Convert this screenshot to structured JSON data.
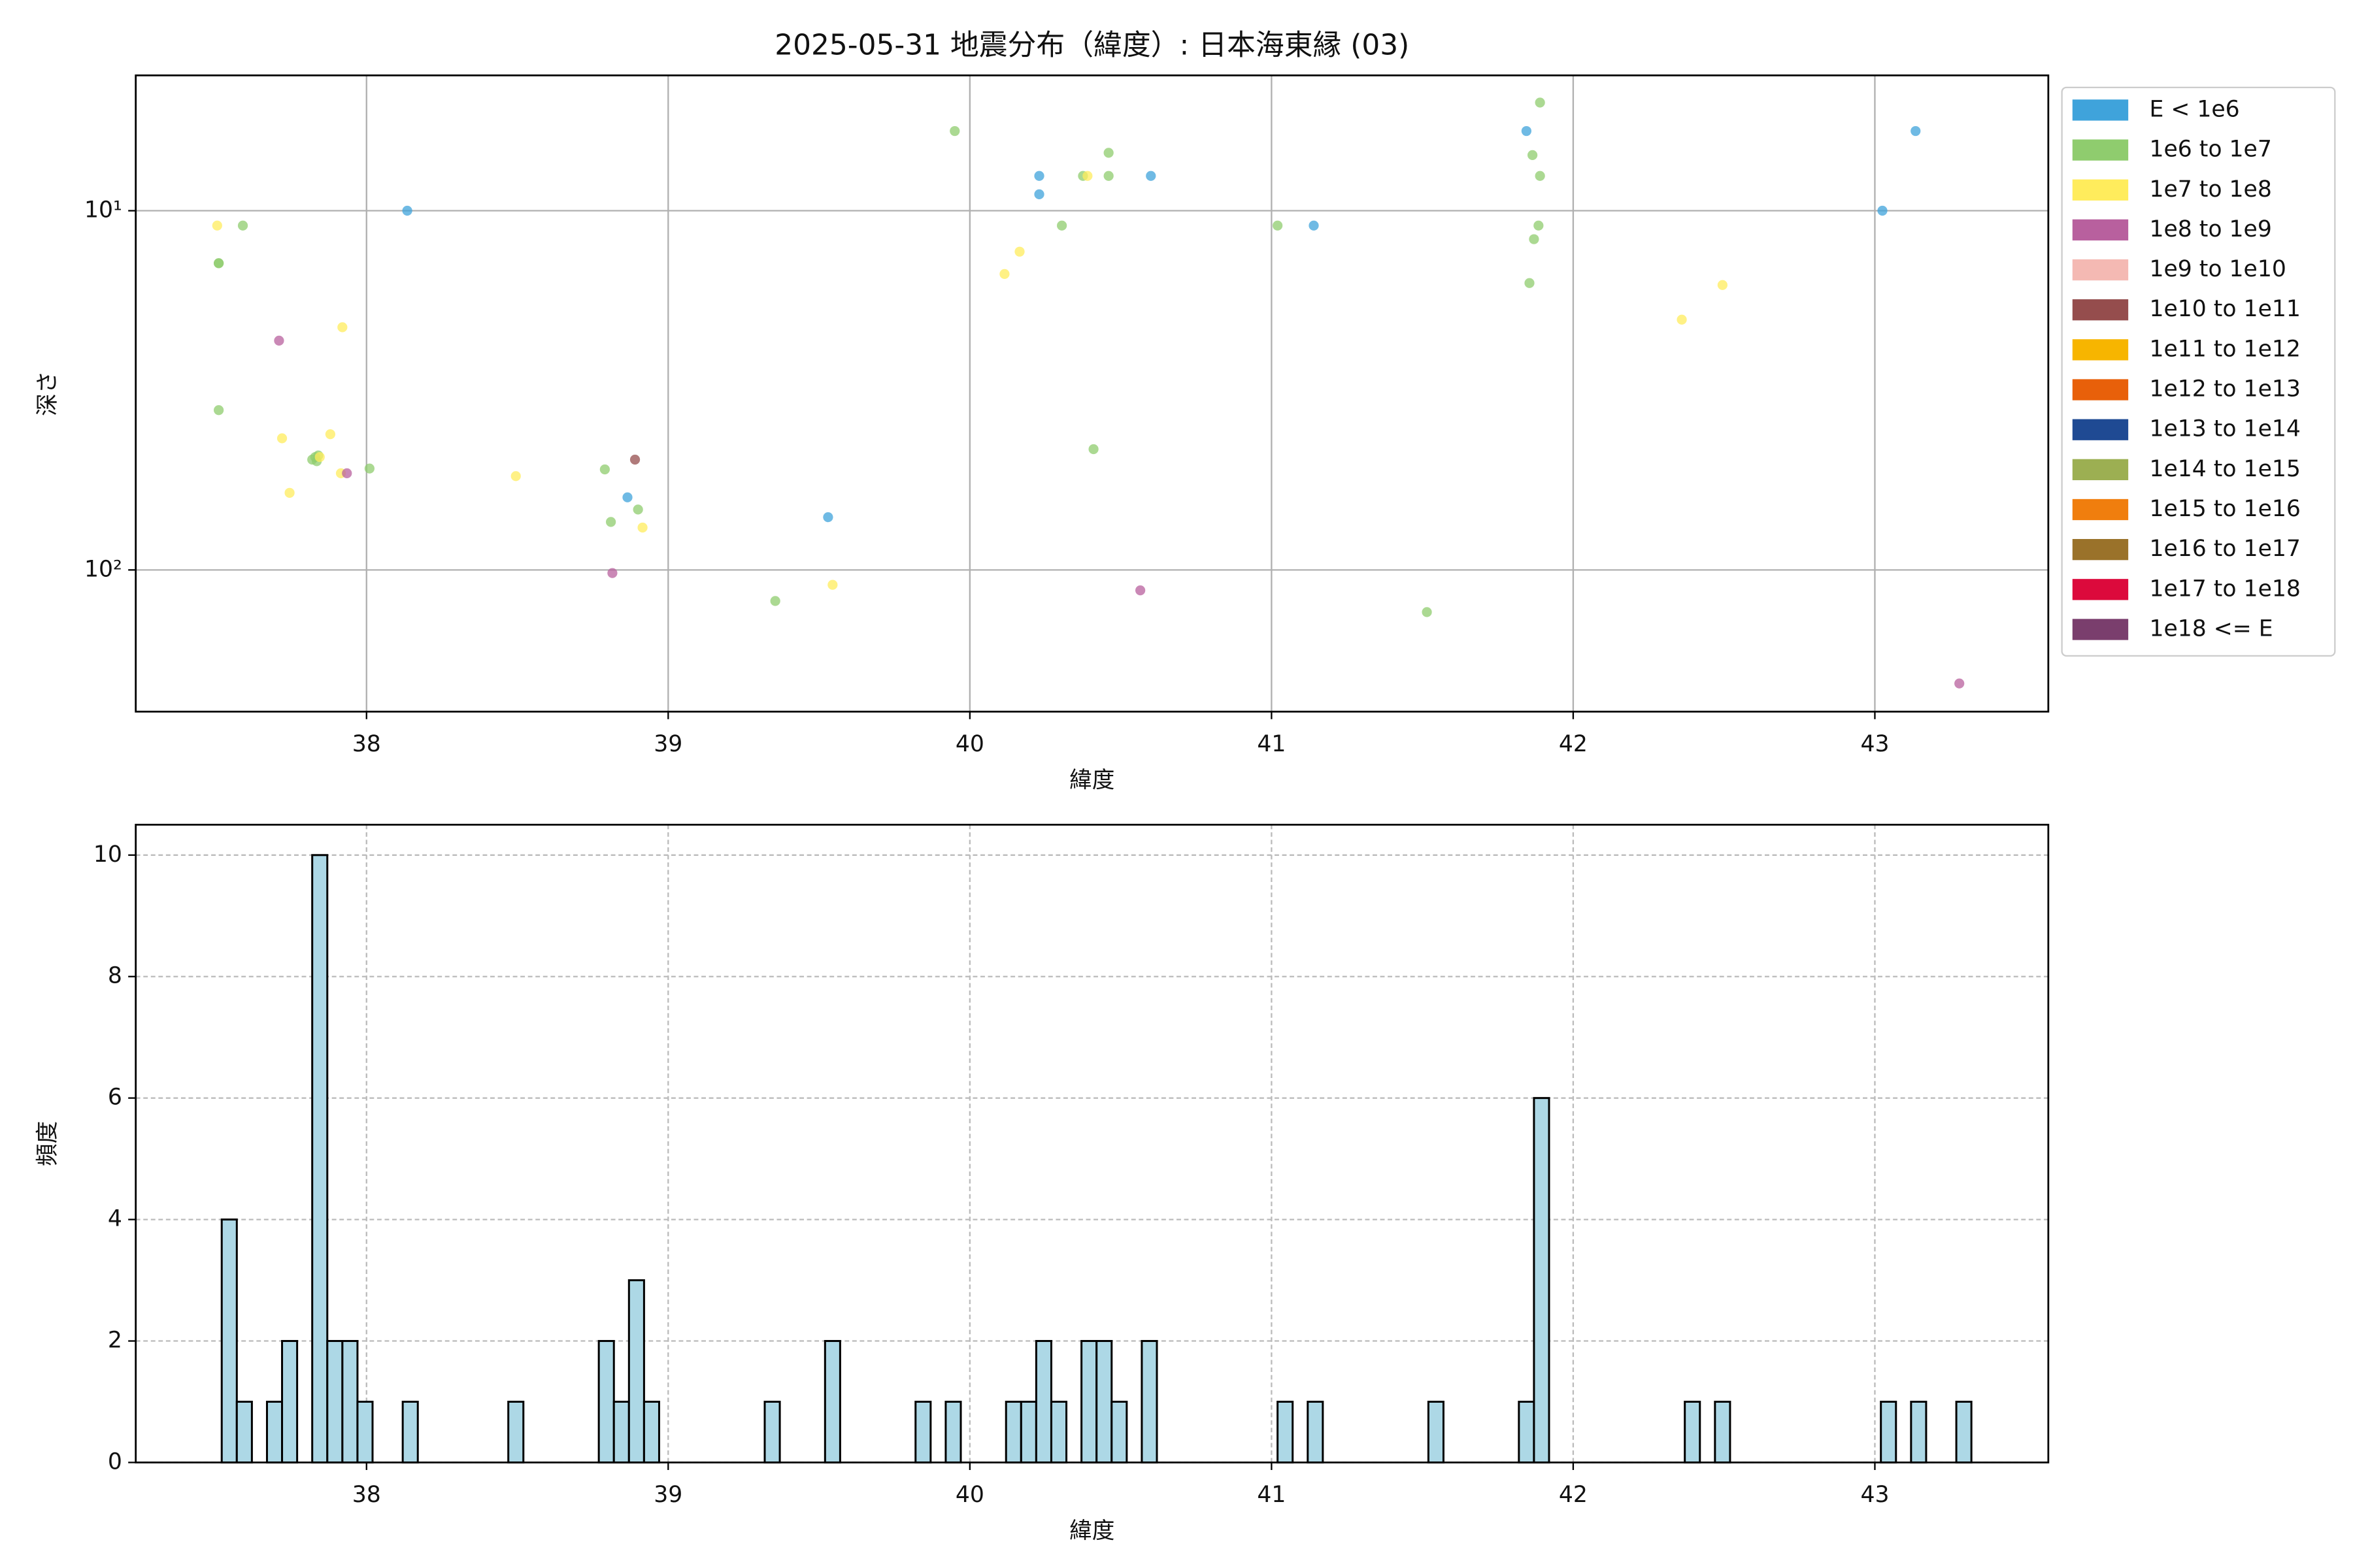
{
  "chart_data": [
    {
      "type": "scatter",
      "title": "2025-05-31 地震分布（緯度）: 日本海東縁 (03)",
      "xlabel": "緯度",
      "ylabel": "深さ",
      "xlim": [
        37.235,
        43.575
      ],
      "xticks": [
        38,
        39,
        40,
        41,
        42,
        43
      ],
      "ylim": [
        4.2,
        248
      ],
      "yscale": "log",
      "y_inverted": true,
      "yticks": [
        {
          "value": 10,
          "label": "10¹"
        },
        {
          "value": 100,
          "label": "10²"
        }
      ],
      "grid": true,
      "grid_style": "solid",
      "legend": "outside-right",
      "series": [
        {
          "name": "E < 1e6",
          "color": "#3fa3db",
          "x": [
            38.135,
            38.865,
            39.53,
            40.23,
            40.23,
            40.6,
            41.14,
            41.845,
            43.025,
            43.135
          ],
          "values": [
            10,
            62.8,
            71.3,
            8.0,
            9.0,
            8.0,
            11.0,
            6.0,
            10,
            6.0
          ]
        },
        {
          "name": "1e6 to 1e7",
          "color": "#8fcc6e",
          "x": [
            37.51,
            37.51,
            37.59,
            37.51,
            37.82,
            37.83,
            37.835,
            37.84,
            38.01,
            38.79,
            38.81,
            38.9,
            39.355,
            39.95,
            40.305,
            40.375,
            40.46,
            40.46,
            40.41,
            41.02,
            41.515,
            41.855,
            41.87,
            41.865,
            41.89,
            41.89,
            41.885
          ],
          "values": [
            14.0,
            14.0,
            11.0,
            35.9,
            49.3,
            48.5,
            49.8,
            48.0,
            52.2,
            52.5,
            73.5,
            67.9,
            122,
            6.0,
            11,
            8,
            6.9,
            8,
            46.1,
            11,
            131,
            15.9,
            12.0,
            7.0,
            5.0,
            8,
            11
          ]
        },
        {
          "name": "1e7 to 1e8",
          "color": "#ffec5c",
          "x": [
            37.505,
            37.72,
            37.745,
            37.88,
            37.92,
            37.915,
            37.845,
            38.495,
            38.915,
            39.545,
            40.115,
            40.165,
            40.39,
            42.36,
            42.495
          ],
          "values": [
            11,
            43,
            61,
            41.9,
            21.1,
            53.8,
            48.5,
            54.8,
            76.2,
            110,
            15.0,
            13.0,
            8,
            20.1,
            16.1
          ]
        },
        {
          "name": "1e8 to 1e9",
          "color": "#b8609e",
          "x": [
            37.71,
            37.935,
            38.815,
            40.565,
            43.28
          ],
          "values": [
            23,
            53.8,
            102,
            114,
            207
          ]
        },
        {
          "name": "1e9 to 1e10",
          "color": "#f4b9b3",
          "x": [],
          "values": []
        },
        {
          "name": "1e10 to 1e11",
          "color": "#954d4d",
          "x": [
            38.89
          ],
          "values": [
            49.3
          ]
        },
        {
          "name": "1e11 to 1e12",
          "color": "#f7b500",
          "x": [],
          "values": []
        },
        {
          "name": "1e12 to 1e13",
          "color": "#e8600a",
          "x": [],
          "values": []
        },
        {
          "name": "1e13 to 1e14",
          "color": "#1f4a93",
          "x": [],
          "values": []
        },
        {
          "name": "1e14 to 1e15",
          "color": "#9caf52",
          "x": [],
          "values": []
        },
        {
          "name": "1e15 to 1e16",
          "color": "#f07e0e",
          "x": [],
          "values": []
        },
        {
          "name": "1e16 to 1e17",
          "color": "#9a722a",
          "x": [],
          "values": []
        },
        {
          "name": "1e17 to 1e18",
          "color": "#dc0a3c",
          "x": [],
          "values": []
        },
        {
          "name": "1e18 <= E",
          "color": "#7a3e6d",
          "x": [],
          "values": []
        }
      ]
    },
    {
      "type": "histogram",
      "xlabel": "緯度",
      "ylabel": "頻度",
      "xlim": [
        37.235,
        43.575
      ],
      "xticks": [
        38,
        39,
        40,
        41,
        42,
        43
      ],
      "ylim": [
        0,
        10.5
      ],
      "yticks": [
        0,
        2,
        4,
        6,
        8,
        10
      ],
      "grid": true,
      "grid_style": "dashed",
      "color": "#add8e6",
      "edgecolor": "#000000",
      "bins": [
        37.52,
        37.57,
        37.62,
        37.67,
        37.72,
        37.77,
        37.82,
        37.87,
        37.92,
        37.97,
        38.02,
        38.07,
        38.12,
        38.17,
        38.22,
        38.27,
        38.32,
        38.37,
        38.42,
        38.47,
        38.52,
        38.57,
        38.62,
        38.67,
        38.72,
        38.77,
        38.82,
        38.87,
        38.92,
        38.97,
        39.02,
        39.07,
        39.12,
        39.17,
        39.22,
        39.27,
        39.32,
        39.37,
        39.42,
        39.47,
        39.52,
        39.57,
        39.62,
        39.67,
        39.72,
        39.77,
        39.82,
        39.87,
        39.92,
        39.97,
        40.02,
        40.07,
        40.12,
        40.17,
        40.22,
        40.27,
        40.32,
        40.37,
        40.42,
        40.47,
        40.52,
        40.57,
        40.62,
        40.67,
        40.72,
        40.77,
        40.82,
        40.87,
        40.92,
        40.97,
        41.02,
        41.07,
        41.12,
        41.17,
        41.22,
        41.27,
        41.32,
        41.37,
        41.42,
        41.47,
        41.52,
        41.57,
        41.62,
        41.67,
        41.72,
        41.77,
        41.82,
        41.87,
        41.92,
        41.97,
        42.02,
        42.07,
        42.12,
        42.17,
        42.22,
        42.27,
        42.32,
        42.37,
        42.42,
        42.47,
        42.52,
        42.57,
        42.62,
        42.67,
        42.72,
        42.77,
        42.82,
        42.87,
        42.92,
        42.97,
        43.02,
        43.07,
        43.12,
        43.17,
        43.22,
        43.27,
        43.32
      ],
      "values": [
        4,
        1,
        0,
        1,
        2,
        0,
        10,
        2,
        2,
        1,
        0,
        0,
        1,
        0,
        0,
        0,
        0,
        0,
        0,
        1,
        0,
        0,
        0,
        0,
        0,
        2,
        1,
        3,
        1,
        0,
        0,
        0,
        0,
        0,
        0,
        0,
        1,
        0,
        0,
        0,
        2,
        0,
        0,
        0,
        0,
        0,
        1,
        0,
        1,
        0,
        0,
        0,
        1,
        1,
        2,
        1,
        0,
        2,
        2,
        1,
        0,
        2,
        0,
        0,
        0,
        0,
        0,
        0,
        0,
        0,
        1,
        0,
        1,
        0,
        0,
        0,
        0,
        0,
        0,
        0,
        1,
        0,
        0,
        0,
        0,
        0,
        1,
        6,
        0,
        0,
        0,
        0,
        0,
        0,
        0,
        0,
        0,
        1,
        0,
        1,
        0,
        0,
        0,
        0,
        0,
        0,
        0,
        0,
        0,
        0,
        1,
        0,
        1,
        0,
        0,
        1
      ]
    }
  ]
}
